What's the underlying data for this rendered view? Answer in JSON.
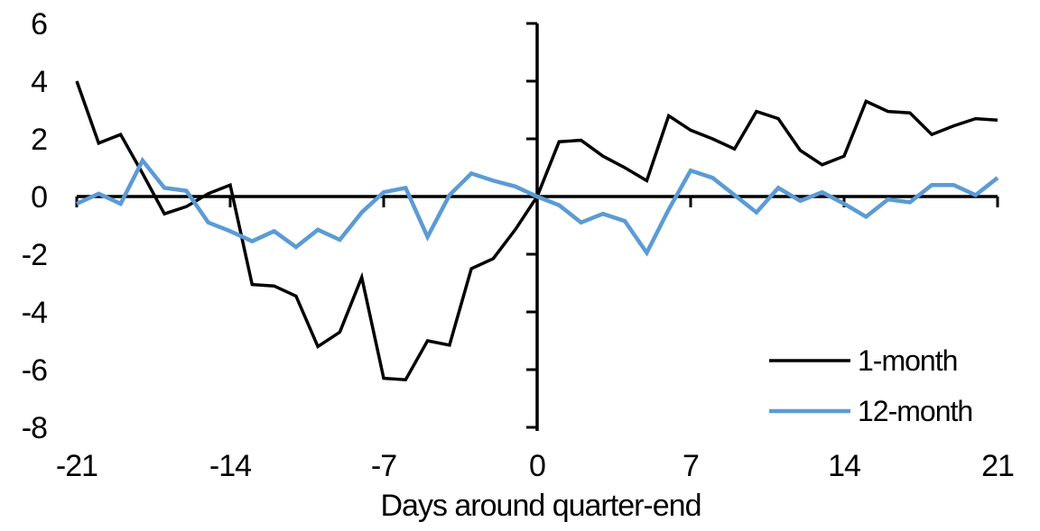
{
  "chart_data": {
    "type": "line",
    "title": "",
    "xlabel": "Days around quarter-end",
    "ylabel": "",
    "grid": false,
    "legend_position": "lower-right",
    "xlim": [
      -21,
      21
    ],
    "ylim": [
      -8,
      6
    ],
    "xticks": [
      -21,
      -14,
      -7,
      0,
      7,
      14,
      21
    ],
    "yticks": [
      6,
      4,
      2,
      0,
      -2,
      -4,
      -6,
      -8
    ],
    "x": [
      -21,
      -20,
      -19,
      -18,
      -17,
      -16,
      -15,
      -14,
      -13,
      -12,
      -11,
      -10,
      -9,
      -8,
      -7,
      -6,
      -5,
      -4,
      -3,
      -2,
      -1,
      0,
      1,
      2,
      3,
      4,
      5,
      6,
      7,
      8,
      9,
      10,
      11,
      12,
      13,
      14,
      15,
      16,
      17,
      18,
      19,
      20,
      21
    ],
    "series": [
      {
        "name": "1-month",
        "color": "#000000",
        "values": [
          4.0,
          1.85,
          2.15,
          0.8,
          -0.6,
          -0.35,
          0.1,
          0.4,
          -3.05,
          -3.1,
          -3.45,
          -5.2,
          -4.7,
          -2.8,
          -6.3,
          -6.35,
          -5.0,
          -5.15,
          -2.5,
          -2.15,
          -1.15,
          0.0,
          1.9,
          1.95,
          1.4,
          1.0,
          0.55,
          2.8,
          2.3,
          2.0,
          1.65,
          2.95,
          2.7,
          1.6,
          1.1,
          1.4,
          3.3,
          2.95,
          2.9,
          2.15,
          2.45,
          2.7,
          2.65
        ]
      },
      {
        "name": "12-month",
        "color": "#5B9BD5",
        "values": [
          -0.25,
          0.1,
          -0.25,
          1.25,
          0.3,
          0.2,
          -0.9,
          -1.2,
          -1.55,
          -1.2,
          -1.75,
          -1.15,
          -1.5,
          -0.55,
          0.15,
          0.3,
          -1.4,
          0.05,
          0.8,
          0.55,
          0.35,
          0.0,
          -0.3,
          -0.9,
          -0.6,
          -0.85,
          -1.95,
          -0.45,
          0.9,
          0.65,
          0.05,
          -0.55,
          0.3,
          -0.15,
          0.15,
          -0.25,
          -0.7,
          -0.1,
          -0.2,
          0.4,
          0.4,
          0.05,
          0.65
        ]
      }
    ]
  }
}
